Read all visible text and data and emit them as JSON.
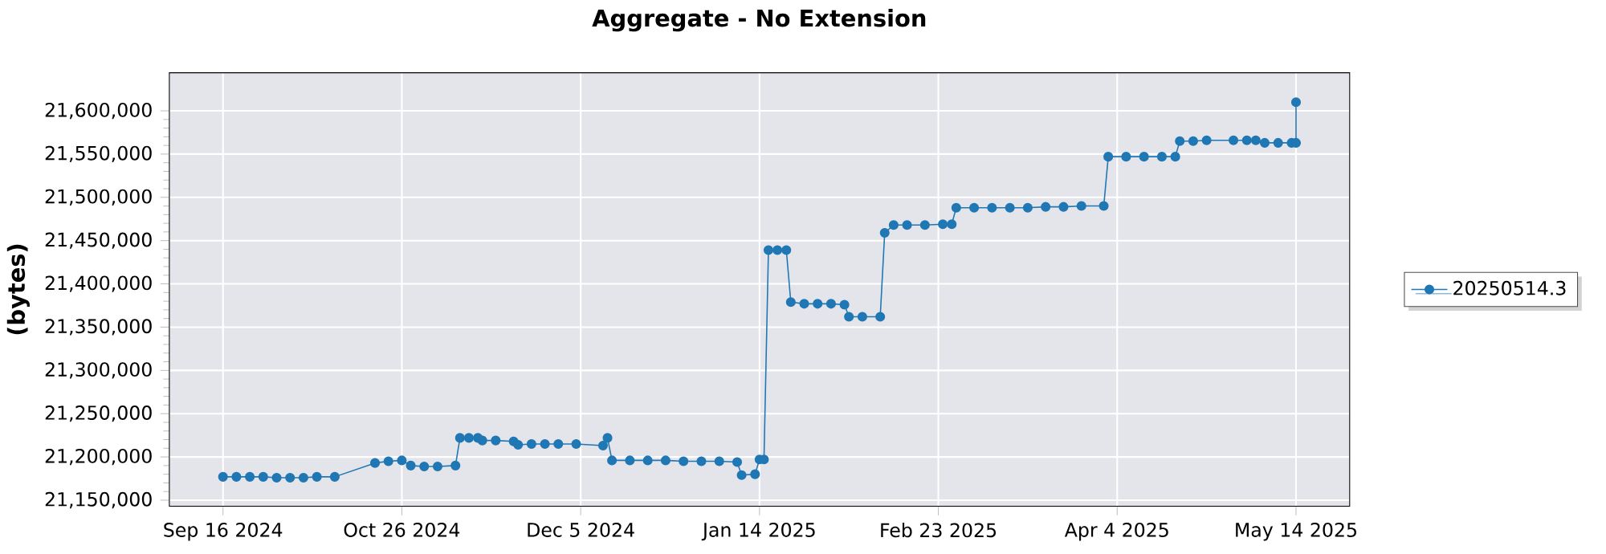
{
  "chart_data": {
    "type": "line",
    "title": "Aggregate - No Extension",
    "ylabel": "(bytes)",
    "xlim": [
      "2024-09-04",
      "2025-05-26"
    ],
    "xticks": [
      {
        "value": "2024-09-16",
        "label": "Sep 16 2024"
      },
      {
        "value": "2024-10-26",
        "label": "Oct 26 2024"
      },
      {
        "value": "2024-12-05",
        "label": "Dec 5 2024"
      },
      {
        "value": "2025-01-14",
        "label": "Jan 14 2025"
      },
      {
        "value": "2025-02-23",
        "label": "Feb 23 2025"
      },
      {
        "value": "2025-04-04",
        "label": "Apr 4 2025"
      },
      {
        "value": "2025-05-14",
        "label": "May 14 2025"
      }
    ],
    "ylim": [
      21143000,
      21644000
    ],
    "yticks": [
      {
        "value": 21150000,
        "label": "21,150,000"
      },
      {
        "value": 21200000,
        "label": "21,200,000"
      },
      {
        "value": 21250000,
        "label": "21,250,000"
      },
      {
        "value": 21300000,
        "label": "21,300,000"
      },
      {
        "value": 21350000,
        "label": "21,350,000"
      },
      {
        "value": 21400000,
        "label": "21,400,000"
      },
      {
        "value": 21450000,
        "label": "21,450,000"
      },
      {
        "value": 21500000,
        "label": "21,500,000"
      },
      {
        "value": 21550000,
        "label": "21,550,000"
      },
      {
        "value": 21600000,
        "label": "21,600,000"
      }
    ],
    "grid": true,
    "legend": "right",
    "marker": "circle",
    "line_style": "solid",
    "series": [
      {
        "name": "20250514.3",
        "color": "#1f77b4",
        "x": [
          "2024-09-16",
          "2024-09-19",
          "2024-09-22",
          "2024-09-25",
          "2024-09-28",
          "2024-10-01",
          "2024-10-04",
          "2024-10-07",
          "2024-10-11",
          "2024-10-20",
          "2024-10-23",
          "2024-10-26",
          "2024-10-28",
          "2024-10-31",
          "2024-11-03",
          "2024-11-07",
          "2024-11-08",
          "2024-11-10",
          "2024-11-12",
          "2024-11-13",
          "2024-11-16",
          "2024-11-20",
          "2024-11-21",
          "2024-11-24",
          "2024-11-27",
          "2024-11-30",
          "2024-12-04",
          "2024-12-10",
          "2024-12-11",
          "2024-12-12",
          "2024-12-16",
          "2024-12-20",
          "2024-12-24",
          "2024-12-28",
          "2025-01-01",
          "2025-01-05",
          "2025-01-09",
          "2025-01-10",
          "2025-01-13",
          "2025-01-14",
          "2025-01-15",
          "2025-01-16",
          "2025-01-18",
          "2025-01-20",
          "2025-01-21",
          "2025-01-24",
          "2025-01-27",
          "2025-01-30",
          "2025-02-02",
          "2025-02-03",
          "2025-02-06",
          "2025-02-10",
          "2025-02-11",
          "2025-02-13",
          "2025-02-16",
          "2025-02-20",
          "2025-02-24",
          "2025-02-26",
          "2025-02-27",
          "2025-03-03",
          "2025-03-07",
          "2025-03-11",
          "2025-03-15",
          "2025-03-19",
          "2025-03-23",
          "2025-03-27",
          "2025-04-01",
          "2025-04-02",
          "2025-04-06",
          "2025-04-10",
          "2025-04-14",
          "2025-04-17",
          "2025-04-18",
          "2025-04-21",
          "2025-04-24",
          "2025-04-30",
          "2025-05-03",
          "2025-05-05",
          "2025-05-07",
          "2025-05-10",
          "2025-05-13",
          "2025-05-14",
          "2025-05-14"
        ],
        "values": [
          21177000,
          21177000,
          21177000,
          21177000,
          21176000,
          21176000,
          21176000,
          21177000,
          21177000,
          21193000,
          21195000,
          21196000,
          21190000,
          21189000,
          21189000,
          21190000,
          21222000,
          21222000,
          21222000,
          21219000,
          21219000,
          21218000,
          21214000,
          21215000,
          21215000,
          21215000,
          21215000,
          21213000,
          21222000,
          21196000,
          21196000,
          21196000,
          21196000,
          21195000,
          21195000,
          21195000,
          21194000,
          21179000,
          21180000,
          21197000,
          21197000,
          21439000,
          21439000,
          21439000,
          21379000,
          21377000,
          21377000,
          21377000,
          21376000,
          21362000,
          21362000,
          21362000,
          21459000,
          21468000,
          21468000,
          21468000,
          21469000,
          21469000,
          21488000,
          21488000,
          21488000,
          21488000,
          21488000,
          21489000,
          21489000,
          21490000,
          21490000,
          21547000,
          21547000,
          21547000,
          21547000,
          21547000,
          21565000,
          21565000,
          21566000,
          21566000,
          21566000,
          21566000,
          21563000,
          21563000,
          21563000,
          21563000,
          21610000
        ]
      }
    ]
  }
}
